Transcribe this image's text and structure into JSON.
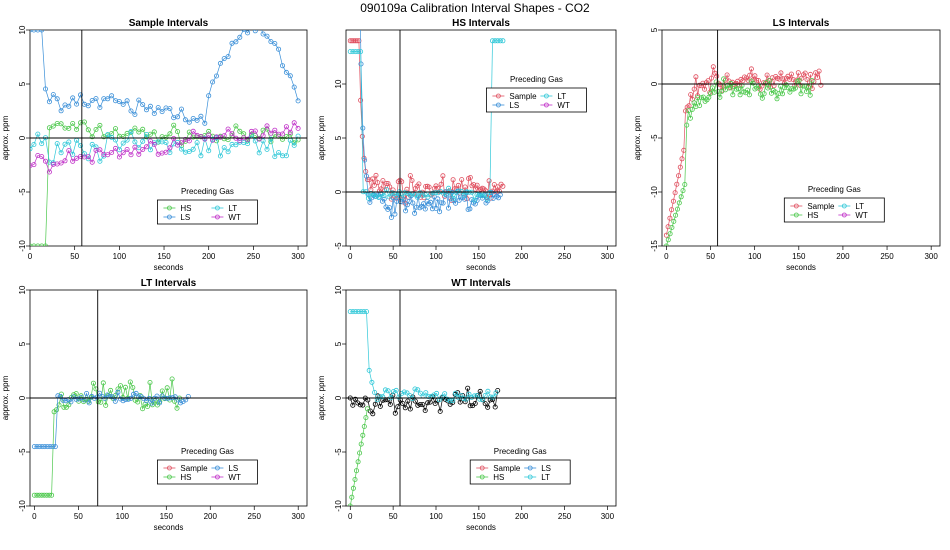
{
  "title": "090109a   Calibration Interval Shapes - CO2",
  "colors": {
    "Sample": "#e05060",
    "HS": "#4cc84c",
    "LS": "#3a8fd8",
    "LT": "#30c8d8",
    "WT": "#c030c8",
    "black": "#000000"
  },
  "chart_data": [
    {
      "type": "scatter",
      "title": "Sample Intervals",
      "xlabel": "seconds",
      "ylabel": "approx. ppm",
      "xlim": [
        0,
        310
      ],
      "ylim": [
        -10,
        10
      ],
      "xticks": [
        0,
        50,
        100,
        150,
        200,
        250,
        300
      ],
      "yticks": [
        -10,
        -5,
        0,
        5,
        10
      ],
      "hline": 0,
      "vline": 58,
      "legend": {
        "title": "Preceding Gas",
        "position": "bottom-center",
        "entries": [
          "HS",
          "LT",
          "LS",
          "WT"
        ],
        "cols": 2
      },
      "series": [
        {
          "name": "HS",
          "pattern": "hs_sample",
          "n": 70,
          "end": 300
        },
        {
          "name": "LT",
          "pattern": "noise",
          "n": 70,
          "end": 300,
          "level": -0.8,
          "spread": 1.0
        },
        {
          "name": "LS",
          "pattern": "ls_sample",
          "n": 70,
          "end": 300
        },
        {
          "name": "WT",
          "pattern": "wt_sample",
          "n": 70,
          "end": 300
        }
      ]
    },
    {
      "type": "scatter",
      "title": "HS Intervals",
      "xlabel": "seconds",
      "ylabel": "approx. ppm",
      "xlim": [
        -5,
        310
      ],
      "ylim": [
        -5,
        15
      ],
      "xticks": [
        0,
        50,
        100,
        150,
        200,
        250,
        300
      ],
      "yticks": [
        -5,
        0,
        5,
        10
      ],
      "hline": 0,
      "vline": 58,
      "legend": {
        "title": "Preceding Gas",
        "position": "top-right",
        "entries": [
          "Sample",
          "LT",
          "LS",
          "WT"
        ],
        "cols": 2
      },
      "series": [
        {
          "name": "Sample",
          "pattern": "decay",
          "n": 90,
          "end": 178,
          "level": 0.3,
          "spread": 0.9
        },
        {
          "name": "LS",
          "pattern": "hs_ls",
          "n": 85,
          "end": 175,
          "level": -1.5,
          "spread": 0.9
        },
        {
          "name": "LT",
          "pattern": "hs_lt",
          "n": 60,
          "end": 178
        }
      ]
    },
    {
      "type": "scatter",
      "title": "LS Intervals",
      "xlabel": "seconds",
      "ylabel": "approx. ppm",
      "xlim": [
        -5,
        310
      ],
      "ylim": [
        -15,
        5
      ],
      "xticks": [
        0,
        50,
        100,
        150,
        200,
        250,
        300
      ],
      "yticks": [
        -15,
        -10,
        -5,
        0,
        5
      ],
      "hline": 0,
      "vline": 58,
      "legend": {
        "title": "Preceding Gas",
        "position": "bottom-right",
        "entries": [
          "Sample",
          "LT",
          "HS",
          "WT"
        ],
        "cols": 2
      },
      "series": [
        {
          "name": "Sample",
          "pattern": "rise",
          "n": 90,
          "end": 175,
          "level": 0.3,
          "spread": 0.9
        },
        {
          "name": "HS",
          "pattern": "rise_hs",
          "n": 80,
          "end": 165,
          "level": -0.5,
          "spread": 0.8
        }
      ]
    },
    {
      "type": "scatter",
      "title": "LT Intervals",
      "xlabel": "seconds",
      "ylabel": "approx. ppm",
      "xlim": [
        -5,
        310
      ],
      "ylim": [
        -10,
        10
      ],
      "xticks": [
        0,
        50,
        100,
        150,
        200,
        250,
        300
      ],
      "yticks": [
        -10,
        -5,
        0,
        5,
        10
      ],
      "hline": 0,
      "vline": 72,
      "legend": {
        "title": "Preceding Gas",
        "position": "bottom-center",
        "entries": [
          "Sample",
          "LS",
          "HS",
          "WT"
        ],
        "cols": 2
      },
      "series": [
        {
          "name": "HS",
          "pattern": "lt_hs",
          "n": 60,
          "end": 165,
          "level": 0.3,
          "spread": 1.1
        },
        {
          "name": "LS",
          "pattern": "lt_ls",
          "n": 60,
          "end": 175,
          "level": 0,
          "spread": 0.4
        }
      ]
    },
    {
      "type": "scatter",
      "title": "WT Intervals",
      "xlabel": "seconds",
      "ylabel": "approx. ppm",
      "xlim": [
        -5,
        310
      ],
      "ylim": [
        -10,
        10
      ],
      "xticks": [
        0,
        50,
        100,
        150,
        200,
        250,
        300
      ],
      "yticks": [
        -10,
        -5,
        0,
        5,
        10
      ],
      "hline": 0,
      "vline": 58,
      "legend": {
        "title": "Preceding Gas",
        "position": "bottom-center",
        "entries": [
          "Sample",
          "LS",
          "HS",
          "LT"
        ],
        "cols": 2
      },
      "series": [
        {
          "name": "black",
          "pattern": "noise",
          "n": 60,
          "end": 172,
          "level": -0.4,
          "spread": 0.9
        },
        {
          "name": "LT",
          "pattern": "wt_lt",
          "n": 55,
          "end": 170,
          "level": 0.2,
          "spread": 0.6
        },
        {
          "name": "HS",
          "pattern": "wt_hs",
          "n": 12,
          "end": 20
        }
      ]
    }
  ]
}
